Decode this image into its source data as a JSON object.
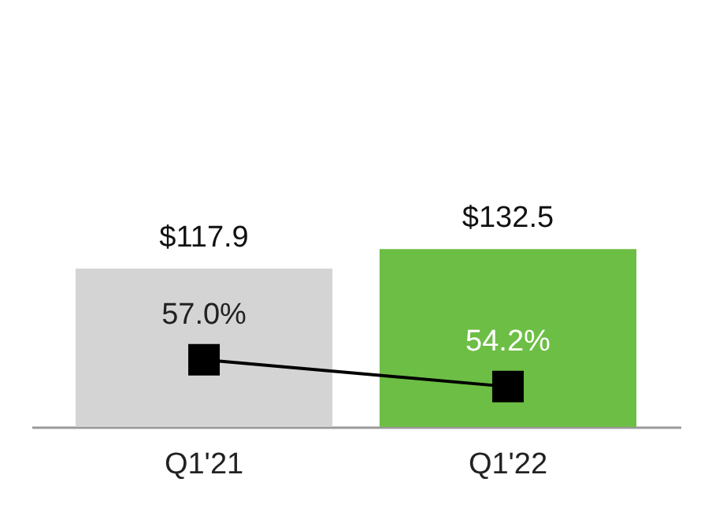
{
  "chart_data": {
    "type": "bar",
    "categories": [
      "Q1'21",
      "Q1'22"
    ],
    "tick_labels": "x",
    "marker": "square",
    "series": [
      {
        "colors": [
          "#d4d4d4",
          "#6dbe45"
        ],
        "values": [
          117.9,
          132.5
        ],
        "value_labels": [
          "$117.9",
          "$132.5"
        ]
      },
      {
        "type": "line",
        "axis": "y2",
        "color": "#000000",
        "values": [
          57.0,
          54.2
        ],
        "value_labels": [
          "57.0%",
          "54.2%"
        ]
      }
    ]
  }
}
